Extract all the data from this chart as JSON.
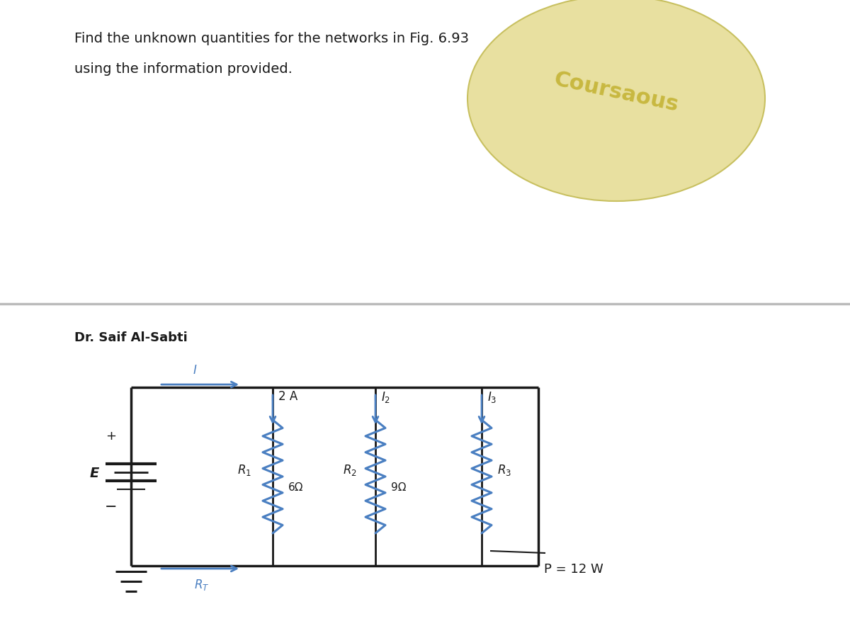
{
  "title_line1": "Find the unknown quantities for the networks in Fig. 6.93",
  "title_line2": "using the information provided.",
  "author": "Dr. Saif Al-Sabti",
  "bg_color": "#ffffff",
  "wire_color": "#1a1a1a",
  "blue_color": "#4a7fc1",
  "black_color": "#1a1a1a",
  "divider_color": "#bbbbbb",
  "R1_label": "R₁",
  "R1_value": "6Ω",
  "R2_label": "R₂",
  "R2_value": "9Ω",
  "R3_label": "R₃",
  "I_label": "I",
  "I1_label": "2 A",
  "I2_label": "I₂",
  "I3_label": "I₃",
  "RT_label": "R_T",
  "E_label": "E",
  "P_label": "P = 12 W",
  "plus_label": "+",
  "minus_label": "−",
  "watermark_text": "Coursaous",
  "watermark_color": "#e8e0a0",
  "watermark_edge": "#c8c060"
}
